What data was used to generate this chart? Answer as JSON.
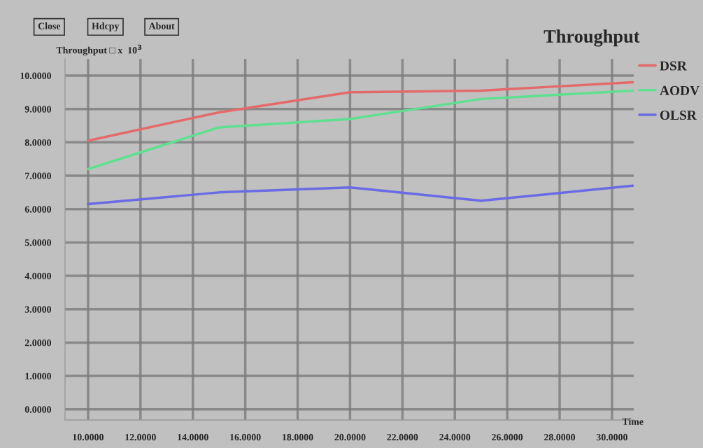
{
  "chart_data": {
    "type": "line",
    "title": "Throughput",
    "ylabel": "Throughput □ x  10$^{3}$",
    "xlabel": "Time",
    "annotations": [
      "Close",
      "Hdcpy",
      "About"
    ],
    "xlim": [
      9.12,
      30.83
    ],
    "ylim": [
      -0.32,
      10.5
    ],
    "xticks": [
      {
        "value": 10,
        "label": "10.0000"
      },
      {
        "value": 12,
        "label": "12.0000"
      },
      {
        "value": 14,
        "label": "14.0000"
      },
      {
        "value": 16,
        "label": "16.0000"
      },
      {
        "value": 18,
        "label": "18.0000"
      },
      {
        "value": 20,
        "label": "20.0000"
      },
      {
        "value": 22,
        "label": "22.0000"
      },
      {
        "value": 24,
        "label": "24.0000"
      },
      {
        "value": 26,
        "label": "26.0000"
      },
      {
        "value": 28,
        "label": "28.0000"
      },
      {
        "value": 30,
        "label": "30.0000"
      }
    ],
    "yticks": [
      {
        "value": 0,
        "label": "0.0000"
      },
      {
        "value": 1,
        "label": "1.0000"
      },
      {
        "value": 2,
        "label": "2.0000"
      },
      {
        "value": 3,
        "label": "3.0000"
      },
      {
        "value": 4,
        "label": "4.0000"
      },
      {
        "value": 5,
        "label": "5.0000"
      },
      {
        "value": 6,
        "label": "6.0000"
      },
      {
        "value": 7,
        "label": "7.0000"
      },
      {
        "value": 8,
        "label": "8.0000"
      },
      {
        "value": 9,
        "label": "9.0000"
      },
      {
        "value": 10,
        "label": "10.0000"
      }
    ],
    "grid": true,
    "legend": "right",
    "x": [
      10,
      15,
      20,
      25,
      30.8
    ],
    "series": [
      {
        "name": "DSR",
        "color": "#e46a6a",
        "values": [
          8.05,
          8.9,
          9.5,
          9.55,
          9.8
        ]
      },
      {
        "name": "AODV",
        "color": "#5ee08f",
        "values": [
          7.2,
          8.45,
          8.7,
          9.3,
          9.55
        ]
      },
      {
        "name": "OLSR",
        "color": "#6a6ae4",
        "values": [
          6.15,
          6.5,
          6.65,
          6.25,
          6.7
        ]
      }
    ]
  }
}
